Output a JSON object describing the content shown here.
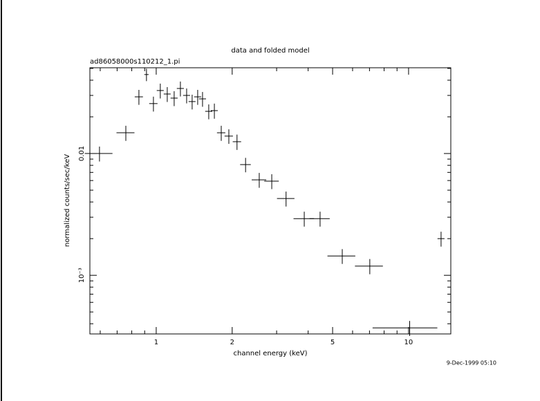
{
  "chart_data": {
    "type": "errorbar",
    "title": "data and folded model",
    "subtitle": "ad86058000s110212_1.pi",
    "x_label": "channel energy (keV)",
    "y_label": "normalized counts/sec/keV",
    "timestamp": "9-Dec-1999 05:10",
    "xscale": "log",
    "yscale": "log",
    "color": "#000000",
    "xlim": [
      0.546,
      14.7
    ],
    "ylim": [
      0.00033,
      0.0506
    ],
    "xticks": [
      1,
      2,
      5,
      10
    ],
    "yticks": [
      {
        "value": 0.001,
        "label": "10⁻³"
      },
      0.01
    ],
    "xminorticks": [
      0.6,
      0.7,
      0.8,
      0.9,
      3,
      4,
      6,
      7,
      8,
      9
    ],
    "yminorticks": [
      0.0004,
      0.0005,
      0.0006,
      0.0007,
      0.0008,
      0.0009,
      0.002,
      0.003,
      0.004,
      0.005,
      0.006,
      0.007,
      0.008,
      0.009,
      0.02,
      0.03,
      0.04,
      0.05
    ],
    "x": [
      0.596,
      0.758,
      0.854,
      0.915,
      0.975,
      1.038,
      1.106,
      1.178,
      1.247,
      1.32,
      1.388,
      1.46,
      1.526,
      1.615,
      1.7,
      1.81,
      1.94,
      2.09,
      2.26,
      2.56,
      2.87,
      3.27,
      3.86,
      4.46,
      5.46,
      7.02,
      10.1,
      13.45
    ],
    "xerr": [
      0.075,
      0.062,
      0.032,
      0.018,
      0.037,
      0.033,
      0.035,
      0.038,
      0.04,
      0.042,
      0.044,
      0.047,
      0.049,
      0.052,
      0.054,
      0.069,
      0.074,
      0.08,
      0.11,
      0.17,
      0.19,
      0.26,
      0.36,
      0.41,
      0.69,
      0.89,
      2.9,
      0.43
    ],
    "values": [
      0.01,
      0.0148,
      0.0292,
      0.0445,
      0.0257,
      0.0329,
      0.0308,
      0.0285,
      0.0342,
      0.03,
      0.0267,
      0.0292,
      0.0281,
      0.0222,
      0.0225,
      0.0148,
      0.0139,
      0.0125,
      0.00811,
      0.00608,
      0.00593,
      0.00427,
      0.00292,
      0.00292,
      0.00144,
      0.00119,
      0.00037,
      0.002
    ],
    "yerr": [
      0.0014,
      0.0021,
      0.0041,
      0.0052,
      0.0036,
      0.0046,
      0.0043,
      0.004,
      0.0048,
      0.0042,
      0.0037,
      0.0041,
      0.0039,
      0.0031,
      0.0032,
      0.0021,
      0.0019,
      0.0018,
      0.0011,
      0.00085,
      0.00083,
      0.0006,
      0.00041,
      0.00041,
      0.0002,
      0.00017,
      5.2e-05,
      0.00028
    ]
  }
}
